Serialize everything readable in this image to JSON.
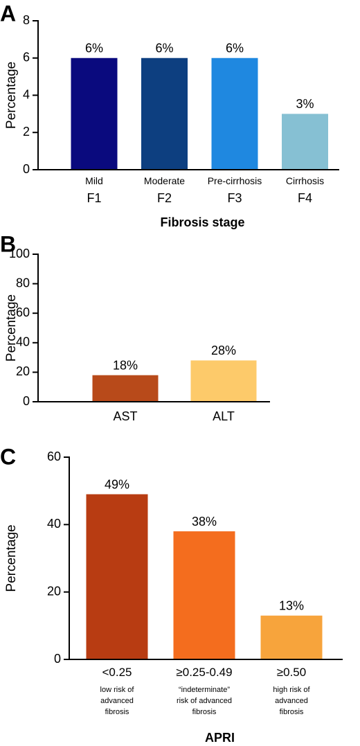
{
  "chart_data": [
    {
      "type": "bar",
      "panel_label": "A",
      "y_label": "Percentage",
      "x_label": "Fibrosis stage",
      "categories": [
        "Mild\nF1",
        "Moderate\nF2",
        "Pre-cirrhosis\nF3",
        "Cirrhosis\nF4"
      ],
      "values": [
        6,
        6,
        6,
        3
      ],
      "value_labels": [
        "6%",
        "6%",
        "6%",
        "3%"
      ],
      "colors": [
        "#0a0a7e",
        "#0d3f80",
        "#1f88e0",
        "#86c0d3"
      ],
      "ylim": [
        0,
        8
      ],
      "yticks": [
        0,
        2,
        4,
        6,
        8
      ]
    },
    {
      "type": "bar",
      "panel_label": "B",
      "y_label": "Percentage",
      "categories": [
        "AST",
        "ALT"
      ],
      "values": [
        18,
        28
      ],
      "value_labels": [
        "18%",
        "28%"
      ],
      "colors": [
        "#b84a1a",
        "#fdca6a"
      ],
      "ylim": [
        0,
        100
      ],
      "yticks": [
        0,
        20,
        40,
        60,
        80,
        100
      ]
    },
    {
      "type": "bar",
      "panel_label": "C",
      "y_label": "Percentage",
      "x_label": "APRI",
      "categories": [
        "<0.25\nlow risk of\nadvanced\nfibrosis",
        "≥0.25-0.49\n“indeterminate”\nrisk of advanced\nfibrosis",
        "≥0.50\nhigh risk of\nadvanced\nfibrosis"
      ],
      "values": [
        49,
        38,
        13
      ],
      "value_labels": [
        "49%",
        "38%",
        "13%"
      ],
      "colors": [
        "#b83c12",
        "#f46d1e",
        "#f7a43c"
      ],
      "ylim": [
        0,
        60
      ],
      "yticks": [
        0,
        20,
        40,
        60
      ]
    }
  ]
}
